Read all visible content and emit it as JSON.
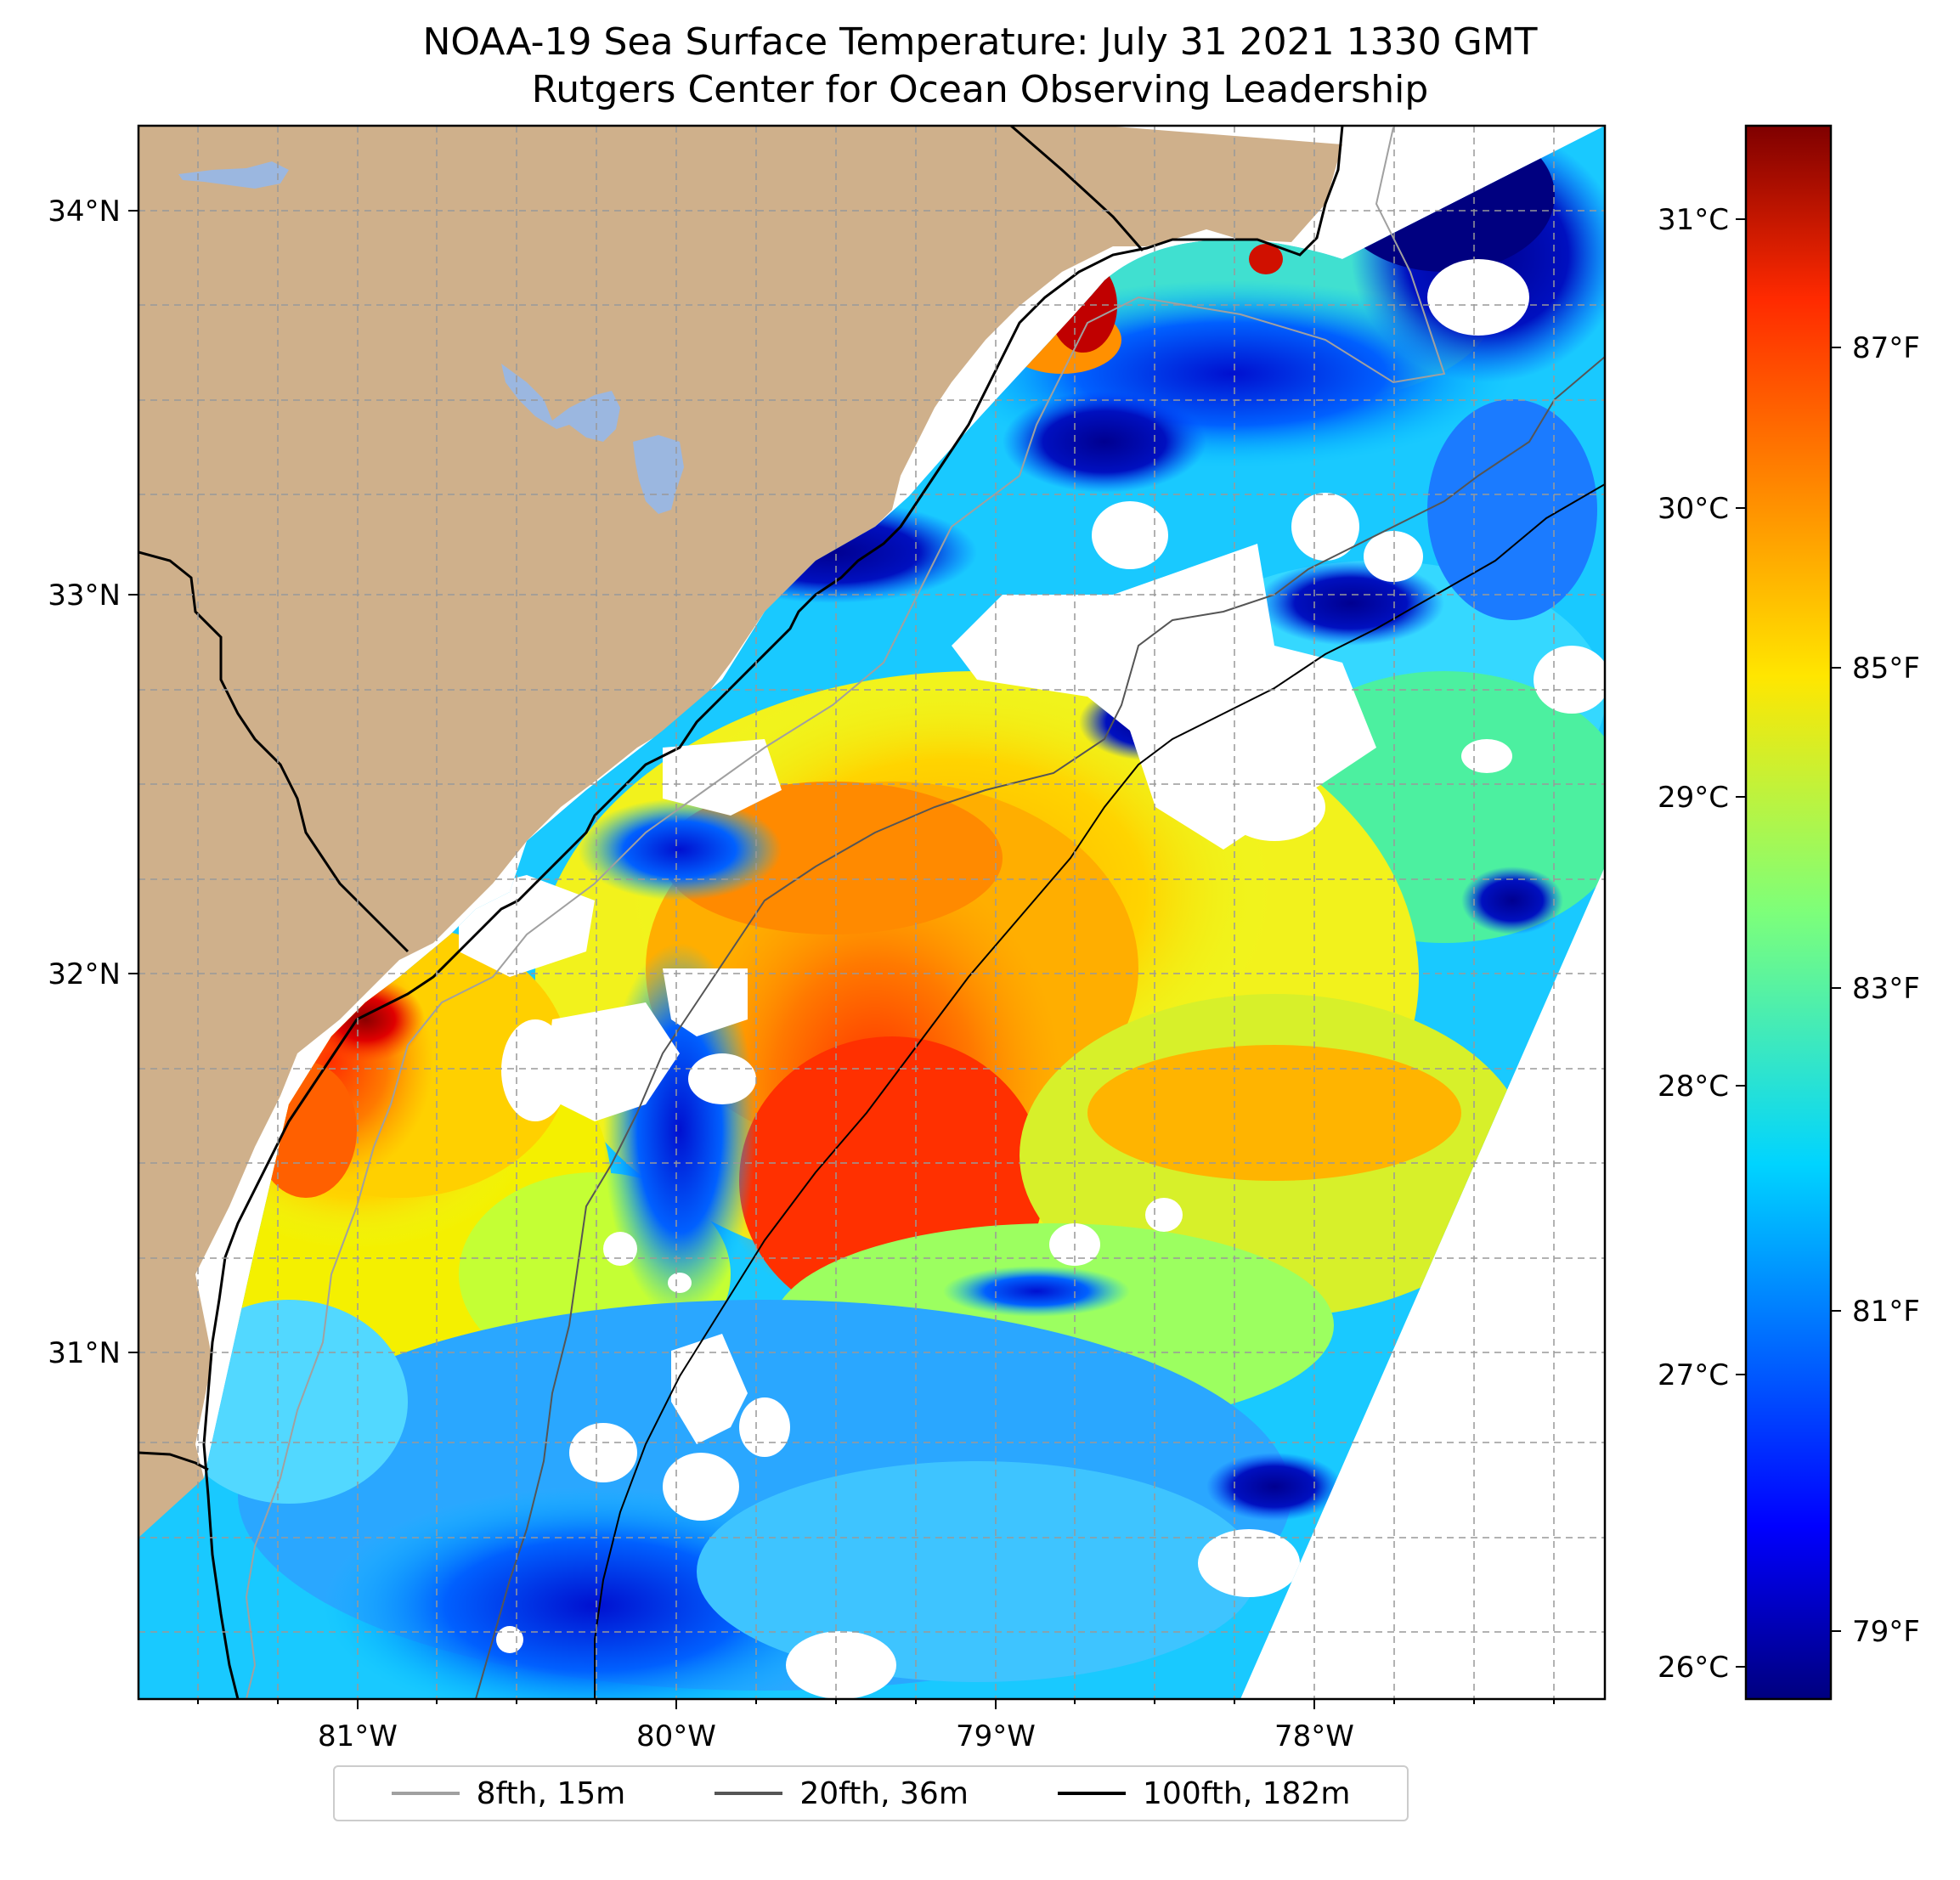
{
  "title": {
    "line1": "NOAA-19 Sea Surface Temperature: July 31 2021 1330 GMT",
    "line2": "Rutgers Center for Ocean Observing Leadership"
  },
  "colors": {
    "land": "#cfb08b",
    "inland_water": "#9bb7e0",
    "no_data": "#ffffff",
    "coastline": "#000000",
    "grid": "#aaaaaa"
  },
  "map": {
    "lon_ticks": [
      "81°W",
      "80°W",
      "79°W",
      "78°W"
    ],
    "lat_ticks": [
      "34°N",
      "33°N",
      "32°N",
      "31°N"
    ]
  },
  "colorbar": {
    "colormap": "jet",
    "celsius_ticks": [
      "31°C",
      "30°C",
      "29°C",
      "28°C",
      "27°C",
      "26°C"
    ],
    "fahrenheit_ticks": [
      "87°F",
      "85°F",
      "83°F",
      "81°F",
      "79°F"
    ]
  },
  "legend": {
    "placement": "bottom-center",
    "items": [
      {
        "label": "8fth, 15m",
        "color": "#a0a0a0"
      },
      {
        "label": "20fth, 36m",
        "color": "#555555"
      },
      {
        "label": "100fth, 182m",
        "color": "#000000"
      }
    ]
  }
}
